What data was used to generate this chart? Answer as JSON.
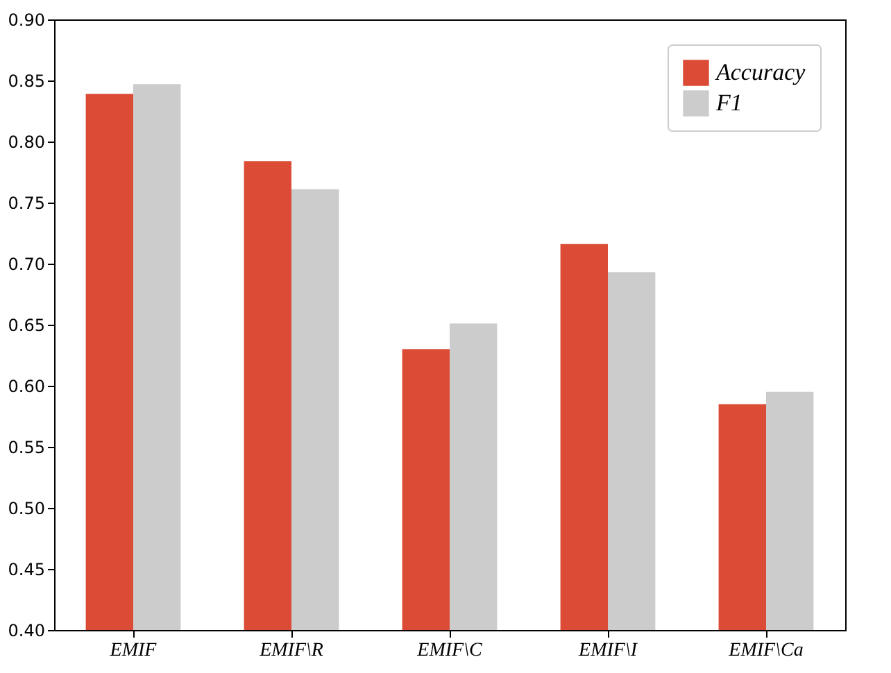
{
  "chart_data": {
    "type": "bar",
    "categories": [
      "EMIF",
      "EMIF\\R",
      "EMIF\\C",
      "EMIF\\I",
      "EMIF\\Ca"
    ],
    "series": [
      {
        "name": "Accuracy",
        "color": "#dc4b35",
        "values": [
          0.839,
          0.784,
          0.63,
          0.716,
          0.585
        ]
      },
      {
        "name": "F1",
        "color": "#cccccc",
        "values": [
          0.847,
          0.761,
          0.651,
          0.693,
          0.595
        ]
      }
    ],
    "ylim": [
      0.4,
      0.9
    ],
    "yticks": [
      {
        "value": 0.4,
        "label": "0.40"
      },
      0.45,
      {
        "value": 0.5,
        "label": "0.50"
      },
      0.55,
      {
        "value": 0.6,
        "label": "0.60"
      },
      0.65,
      {
        "value": 0.7,
        "label": "0.70"
      },
      0.75,
      {
        "value": 0.8,
        "label": "0.80"
      },
      0.85,
      {
        "value": 0.9,
        "label": "0.90"
      }
    ],
    "grid": false,
    "legend": "top right"
  }
}
